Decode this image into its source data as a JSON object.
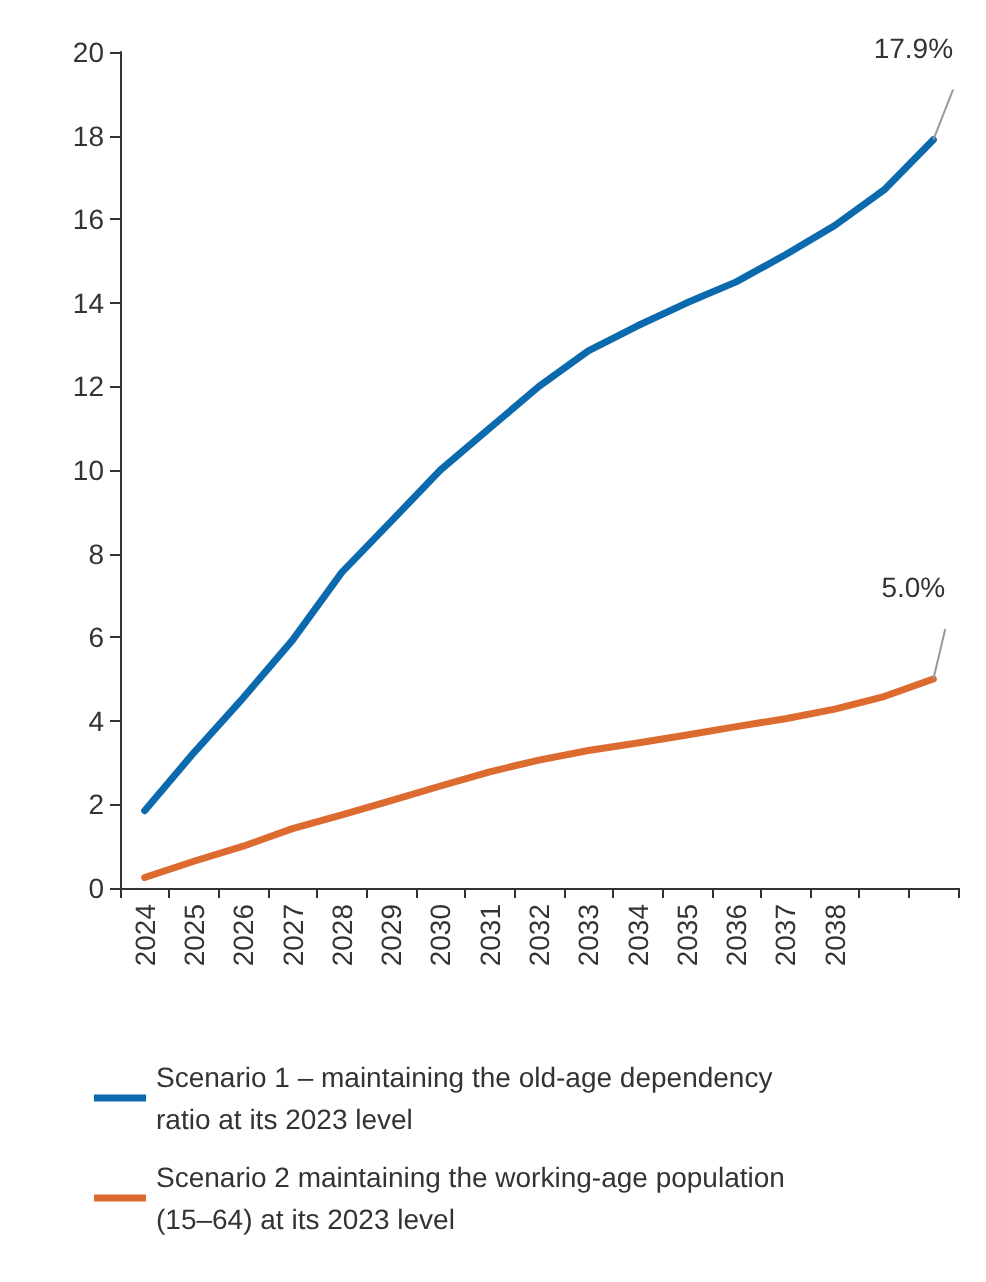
{
  "chart_data": {
    "type": "line",
    "categories": [
      "2024",
      "2025",
      "2026",
      "2027",
      "2028",
      "2029",
      "2030",
      "2031",
      "2032",
      "2033",
      "2034",
      "2035",
      "2036",
      "2037",
      "2038",
      null,
      null
    ],
    "series": [
      {
        "name": "Scenario 1 – maintaining the old-age dependency ratio at its 2023 level",
        "color": "#0b6aad",
        "values": [
          1.85,
          3.24,
          4.55,
          5.93,
          7.55,
          8.77,
          10.0,
          11.0,
          12.0,
          12.85,
          13.45,
          14.0,
          14.5,
          15.15,
          15.85,
          16.7,
          17.9
        ],
        "value_labels": [
          null,
          null,
          null,
          null,
          null,
          null,
          null,
          null,
          null,
          null,
          null,
          null,
          null,
          null,
          null,
          null,
          "17.9%"
        ]
      },
      {
        "name": "Scenario 2 maintaining the working-age population (15–64) at its 2023 level",
        "color": "#dd6a2f",
        "values": [
          0.25,
          0.64,
          1.0,
          1.42,
          1.75,
          2.09,
          2.44,
          2.78,
          3.06,
          3.29,
          3.47,
          3.66,
          3.86,
          4.05,
          4.28,
          4.58,
          5.0
        ],
        "value_labels": [
          null,
          null,
          null,
          null,
          null,
          null,
          null,
          null,
          null,
          null,
          null,
          null,
          null,
          null,
          null,
          null,
          "5.0%"
        ]
      }
    ],
    "ylim": [
      0,
      20
    ],
    "yticks": [
      0,
      2,
      4,
      6,
      8,
      10,
      12,
      14,
      16,
      18,
      20
    ],
    "grid": false,
    "legend": "bottom",
    "marker": "none",
    "line_style": "solid"
  }
}
